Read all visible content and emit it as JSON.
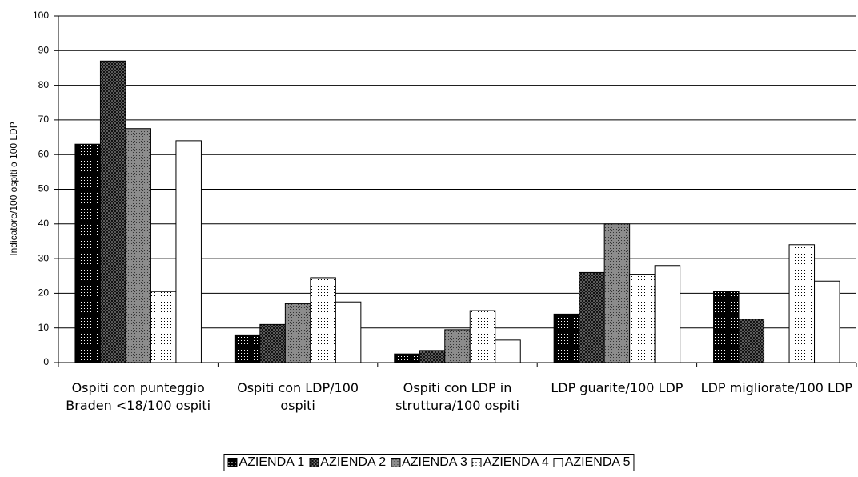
{
  "chart_data": {
    "type": "bar",
    "y_label": "Indicatore/100 ospiti o 100 LDP",
    "categories": [
      "Ospiti con punteggio Braden <18/100 ospiti",
      "Ospiti con LDP/100 ospiti",
      "Ospiti con LDP in struttura/100 ospiti",
      "LDP guarite/100 LDP",
      "LDP migliorate/100 LDP"
    ],
    "series": [
      {
        "name": "AZIENDA 1",
        "color": "#000000",
        "values": [
          63,
          8,
          2.5,
          14,
          20.5
        ]
      },
      {
        "name": "AZIENDA 2",
        "color": "#6e6e6e",
        "values": [
          87,
          11,
          3.5,
          26,
          12.5
        ]
      },
      {
        "name": "AZIENDA 3",
        "color": "#8c8c8c",
        "values": [
          67.5,
          17,
          9.5,
          40,
          null
        ]
      },
      {
        "name": "AZIENDA 4",
        "color": "#ffffff",
        "values": [
          20.5,
          24.5,
          15,
          25.5,
          34
        ]
      },
      {
        "name": "AZIENDA 5",
        "color": "#ffffff",
        "values": [
          64,
          17.5,
          6.5,
          28,
          23.5
        ]
      }
    ],
    "ylim": [
      0,
      100
    ],
    "yticks": [
      0,
      10,
      20,
      30,
      40,
      50,
      60,
      70,
      80,
      90,
      100
    ],
    "grid": true,
    "legend": "bottom"
  }
}
